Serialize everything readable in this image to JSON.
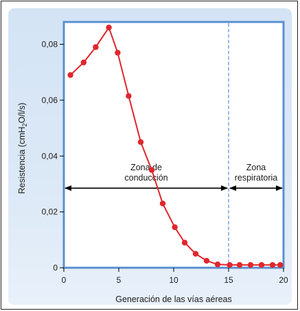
{
  "chart_data": {
    "type": "line",
    "xlabel": "Generación de las vías aéreas",
    "ylabel": "Resistencia (cmH2O/l/s)",
    "ylabel_parts": {
      "pre": "Resistencia (cmH",
      "sub": "2",
      "post": "O/l/s)"
    },
    "xlim": [
      0,
      20
    ],
    "ylim": [
      0,
      0.088
    ],
    "xticks": [
      0,
      5,
      10,
      15,
      20
    ],
    "yticks": [
      0,
      0.02,
      0.04,
      0.06,
      0.08
    ],
    "xtick_labels": [
      "0",
      "5",
      "10",
      "15",
      "20"
    ],
    "ytick_labels": [
      "0",
      "0,02",
      "0,04",
      "0,06",
      "0,08"
    ],
    "grid": false,
    "series": [
      {
        "color": "#e0262e",
        "x": [
          0.6,
          1.8,
          2.9,
          4.1,
          4.9,
          5.9,
          7.0,
          8.0,
          9.0,
          10.1,
          11.0,
          12.0,
          13.0,
          14.0,
          15.1,
          16.0,
          17.0,
          18.0,
          19.0,
          19.7
        ],
        "y": [
          0.069,
          0.0735,
          0.079,
          0.086,
          0.077,
          0.0615,
          0.045,
          0.035,
          0.023,
          0.0145,
          0.009,
          0.005,
          0.0025,
          0.0012,
          0.001,
          0.001,
          0.001,
          0.001,
          0.001,
          0.001
        ]
      }
    ],
    "divider_x": 15,
    "zones": [
      {
        "label_lines": [
          "Zona de",
          "conducción"
        ],
        "x_range": [
          0,
          15
        ]
      },
      {
        "label_lines": [
          "Zona",
          "respiratoria"
        ],
        "x_range": [
          15,
          20
        ]
      }
    ],
    "zone_arrow_y": 0.0285
  },
  "colors": {
    "axes_border": "#5b8fcf",
    "divider": "#5b8fcf",
    "series": "#e0262e",
    "panel": "#d4e4f5"
  }
}
